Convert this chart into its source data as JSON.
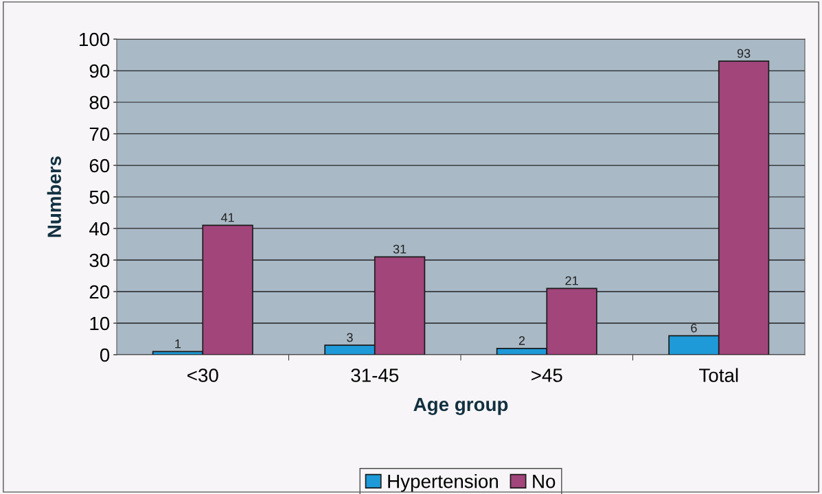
{
  "chart_data": {
    "type": "bar",
    "xlabel": "Age group",
    "ylabel": "Numbers",
    "categories": [
      "<30",
      "31-45",
      ">45",
      "Total"
    ],
    "series": [
      {
        "name": "Hypertension",
        "color": "#1e9ad8",
        "values": [
          1,
          3,
          2,
          6
        ]
      },
      {
        "name": "No",
        "color": "#a1457b",
        "values": [
          41,
          31,
          21,
          93
        ]
      }
    ],
    "ylim": [
      0,
      100
    ],
    "yticks": [
      0,
      10,
      20,
      30,
      40,
      50,
      60,
      70,
      80,
      90,
      100
    ],
    "grid": "y",
    "legend": "bottom",
    "data_labels": true
  }
}
